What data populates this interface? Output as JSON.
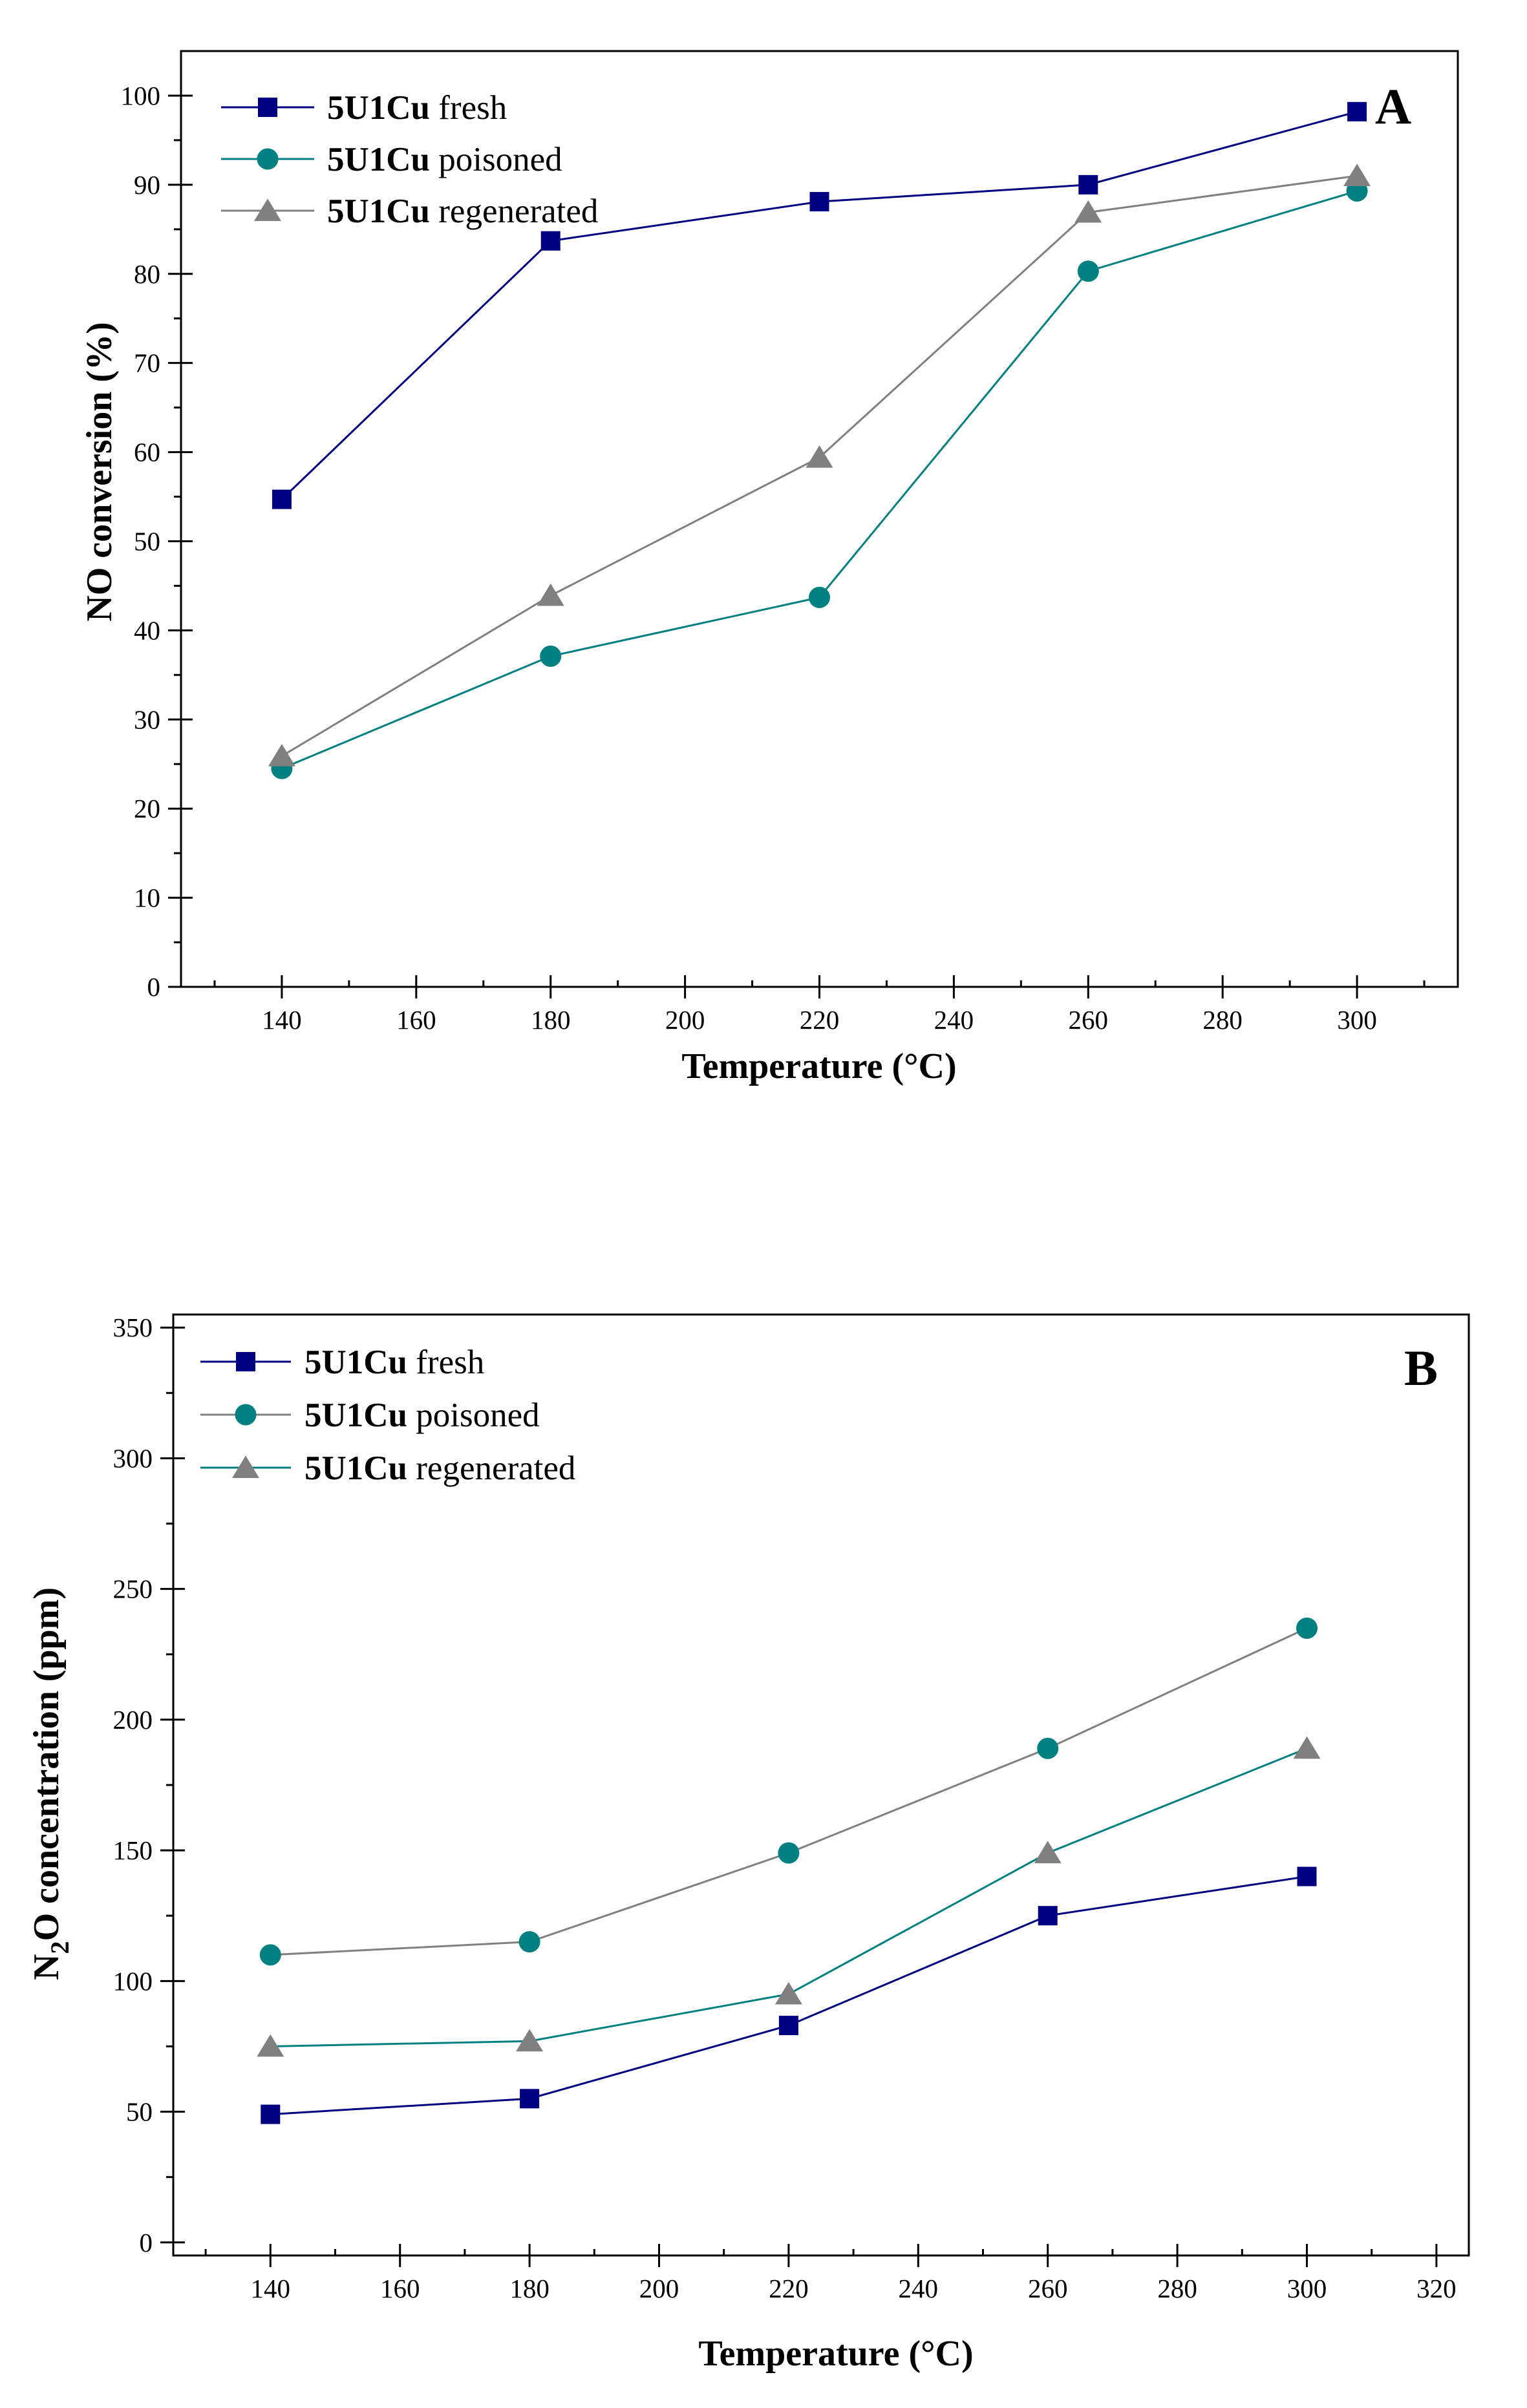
{
  "colors": {
    "fresh_marker": "#000080",
    "poisoned_marker": "#008080",
    "regenerated_marker": "#808080",
    "axis": "#000000"
  },
  "chart_data": [
    {
      "type": "line",
      "panel_label": "A",
      "xlabel": "Temperature (°C)",
      "ylabel": "NO conversion (%)",
      "xlim": [
        125,
        315
      ],
      "ylim": [
        0,
        105
      ],
      "xticks": [
        140,
        160,
        180,
        200,
        220,
        240,
        260,
        280,
        300
      ],
      "yticks": [
        0,
        10,
        20,
        30,
        40,
        50,
        60,
        70,
        80,
        90,
        100
      ],
      "legend_position": "top-left",
      "grid": false,
      "x": [
        140,
        180,
        220,
        260,
        300
      ],
      "series": [
        {
          "name_bold": "5U1Cu",
          "name_rest": " fresh",
          "marker": "square",
          "color": "#000080",
          "line_color": "#000080",
          "values": [
            54.7,
            83.7,
            88.1,
            90.0,
            98.2
          ]
        },
        {
          "name_bold": "5U1Cu",
          "name_rest": " poisoned",
          "marker": "circle",
          "color": "#008080",
          "line_color": "#008080",
          "values": [
            24.5,
            37.1,
            43.7,
            80.3,
            89.3
          ]
        },
        {
          "name_bold": "5U1Cu",
          "name_rest": " regenerated",
          "marker": "triangle",
          "color": "#808080",
          "line_color": "#808080",
          "values": [
            25.9,
            43.9,
            59.4,
            86.9,
            91.0
          ]
        }
      ]
    },
    {
      "type": "line",
      "panel_label": "B",
      "xlabel": "Temperature (°C)",
      "ylabel_parts": [
        "N",
        "2",
        "O concentration (ppm)"
      ],
      "xlim": [
        125,
        325
      ],
      "ylim": [
        -5,
        355
      ],
      "xticks": [
        140,
        160,
        180,
        200,
        220,
        240,
        260,
        280,
        300,
        320
      ],
      "yticks": [
        0,
        50,
        100,
        150,
        200,
        250,
        300,
        350
      ],
      "legend_position": "top-left",
      "grid": false,
      "x": [
        140,
        180,
        220,
        260,
        300
      ],
      "series": [
        {
          "name_bold": "5U1Cu",
          "name_rest": " fresh",
          "marker": "square",
          "color": "#000080",
          "line_color": "#000080",
          "values": [
            49,
            55,
            83,
            125,
            140
          ]
        },
        {
          "name_bold": "5U1Cu",
          "name_rest": " poisoned",
          "marker": "circle",
          "color": "#008080",
          "line_color": "#808080",
          "values": [
            110,
            115,
            149,
            189,
            235
          ]
        },
        {
          "name_bold": "5U1Cu",
          "name_rest": " regenerated",
          "marker": "triangle",
          "color": "#808080",
          "line_color": "#008080",
          "values": [
            75,
            77,
            95,
            149,
            189
          ]
        }
      ]
    }
  ]
}
